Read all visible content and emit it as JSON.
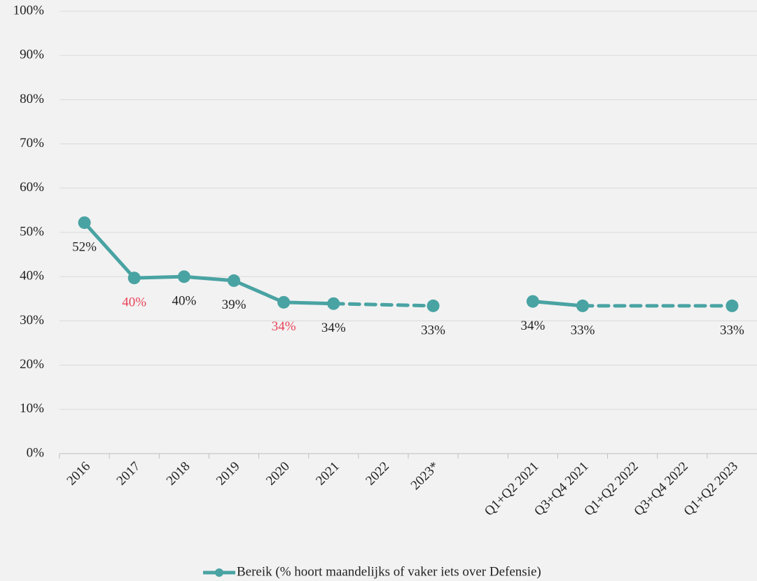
{
  "chart_data": {
    "type": "line",
    "categories": [
      "2016",
      "2017",
      "2018",
      "2019",
      "2020",
      "2021",
      "2022",
      "2023*",
      null,
      "Q1+Q2 2021",
      "Q3+Q4 2021",
      "Q1+Q2 2022",
      "Q3+Q4 2022",
      "Q1+Q2 2023"
    ],
    "series": [
      {
        "name": "Bereik (% hoort maandelijks of vaker iets over Defensie)",
        "color": "#4aa3a3",
        "values": [
          52.2,
          39.7,
          40.0,
          39.1,
          34.2,
          33.9,
          null,
          33.4,
          null,
          34.4,
          33.4,
          null,
          null,
          33.4
        ],
        "value_labels": [
          "52%",
          "40%",
          "40%",
          "39%",
          "34%",
          "34%",
          null,
          "33%",
          null,
          "34%",
          "33%",
          null,
          null,
          "33%"
        ],
        "label_colors": [
          "#222222",
          "#e8455a",
          "#222222",
          "#222222",
          "#e8455a",
          "#222222",
          null,
          "#222222",
          null,
          "#222222",
          "#222222",
          null,
          null,
          "#222222"
        ],
        "line_styles": [
          null,
          "solid",
          "solid",
          "solid",
          "solid",
          "solid",
          null,
          "dashed",
          null,
          null,
          "solid",
          null,
          null,
          "dashed"
        ]
      }
    ],
    "ylim": [
      0,
      100
    ],
    "yticks": [
      {
        "value": 0,
        "label": "0%"
      },
      {
        "value": 10,
        "label": "10%"
      },
      {
        "value": 20,
        "label": "20%"
      },
      {
        "value": 30,
        "label": "30%"
      },
      {
        "value": 40,
        "label": "40%"
      },
      {
        "value": 50,
        "label": "50%"
      },
      {
        "value": 60,
        "label": "60%"
      },
      {
        "value": 70,
        "label": "70%"
      },
      {
        "value": 80,
        "label": "80%"
      },
      {
        "value": 90,
        "label": "90%"
      },
      {
        "value": 100,
        "label": "100%"
      }
    ],
    "grid": true,
    "legend": "bottom"
  }
}
